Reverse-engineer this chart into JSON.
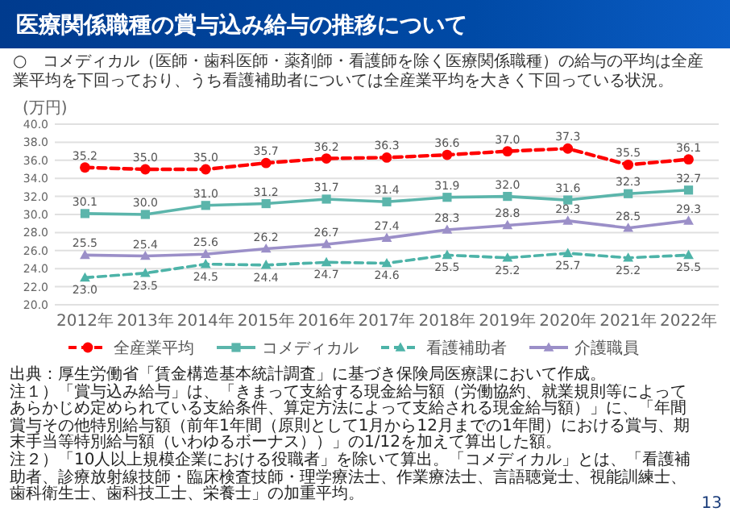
{
  "chart_data": {
    "type": "line",
    "title": "医療関係職種の賞与込み給与の推移について",
    "subtitle": "○　コメディカル（医師・歯科医師・薬剤師・看護師を除く医療関係職種）の給与の平均は全産業平均を下回っており、うち看護補助者については全産業平均を大きく下回っている状況。",
    "ylabel": "(万円)",
    "categories": [
      "2012年",
      "2013年",
      "2014年",
      "2015年",
      "2016年",
      "2017年",
      "2018年",
      "2019年",
      "2020年",
      "2021年",
      "2022年"
    ],
    "series": [
      {
        "name": "全産業平均",
        "color": "#ff0000",
        "line_style": "dashed",
        "marker": "circle",
        "values": [
          35.2,
          35.0,
          35.0,
          35.7,
          36.2,
          36.3,
          36.6,
          37.0,
          37.3,
          35.5,
          36.1
        ],
        "value_labels": [
          "35.2",
          "35.0",
          "35.0",
          "35.7",
          "36.2",
          "36.3",
          "36.6",
          "37.0",
          "37.3",
          "35.5",
          "36.1"
        ]
      },
      {
        "name": "コメディカル",
        "color": "#5bb5ab",
        "line_style": "solid",
        "marker": "square",
        "values": [
          30.1,
          30.0,
          31.0,
          31.2,
          31.7,
          31.4,
          31.9,
          32.0,
          31.6,
          32.3,
          32.7
        ],
        "value_labels": [
          "30.1",
          "30.0",
          "31.0",
          "31.2",
          "31.7",
          "31.4",
          "31.9",
          "32.0",
          "31.6",
          "32.3",
          "32.7"
        ]
      },
      {
        "name": "看護補助者",
        "color": "#4db3a8",
        "line_style": "dashed",
        "marker": "triangle",
        "values": [
          23.0,
          23.5,
          24.5,
          24.4,
          24.7,
          24.6,
          25.5,
          25.2,
          25.7,
          25.2,
          25.5
        ],
        "value_labels": [
          "23.0",
          "23.5",
          "24.5",
          "24.4",
          "24.7",
          "24.6",
          "25.5",
          "25.2",
          "25.7",
          "25.2",
          "25.5"
        ]
      },
      {
        "name": "介護職員",
        "color": "#9b8fc8",
        "line_style": "solid",
        "marker": "triangle",
        "values": [
          25.5,
          25.4,
          25.6,
          26.2,
          26.7,
          27.4,
          28.3,
          28.8,
          29.3,
          28.5,
          29.3
        ],
        "value_labels": [
          "25.5",
          "25.4",
          "25.6",
          "26.2",
          "26.7",
          "27.4",
          "28.3",
          "28.8",
          "29.3",
          "28.5",
          "29.3"
        ]
      }
    ],
    "ylim": [
      20,
      40
    ],
    "yticks": [
      {
        "value": 20,
        "label": "20.0"
      },
      {
        "value": 22,
        "label": "22.0"
      },
      {
        "value": 24,
        "label": "24.0"
      },
      {
        "value": 26,
        "label": "26.0"
      },
      {
        "value": 28,
        "label": "28.0"
      },
      {
        "value": 30,
        "label": "30.0"
      },
      {
        "value": 32,
        "label": "32.0"
      },
      {
        "value": 34,
        "label": "34.0"
      },
      {
        "value": 36,
        "label": "36.0"
      },
      {
        "value": 38,
        "label": "38.0"
      },
      {
        "value": 40,
        "label": "40.0"
      }
    ],
    "grid": "y",
    "legend": "bottom",
    "annotations": [
      "出典：厚生労働省「賃金構造基本統計調査」に基づき保険局医療課において作成。",
      "注１）「賞与込み給与」は、「きまって支給する現金給与額（労働協約、就業規則等によってあらかじめ定められている支給条件、算定方法によって支給される現金給与額）」に、「年間賞与その他特別給与額（前年1年間（原則として1月から12月までの1年間）における賞与、期末手当等特別給与額（いわゆるボーナス））」の1/12を加えて算出した額。",
      "注２）「10人以上規模企業における役職者」を除いて算出。「コメディカル」とは、「看護補助者、診療放射線技師・臨床検査技師・理学療法士、作業療法士、言語聴覚士、視能訓練士、歯科衛生士、歯科技工士、栄養士」の加重平均。",
      "13"
    ]
  }
}
